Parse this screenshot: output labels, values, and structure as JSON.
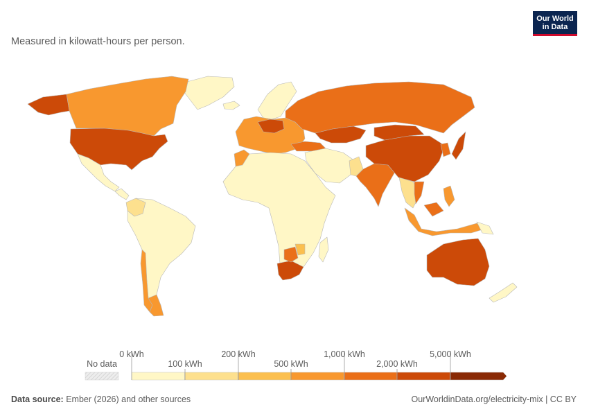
{
  "subtitle": "Measured in kilowatt-hours per person.",
  "logo": {
    "line1": "Our World",
    "line2": "in Data"
  },
  "legend": {
    "no_data_label": "No data",
    "upper_labels": [
      "0 kWh",
      "200 kWh",
      "1,000 kWh",
      "5,000 kWh"
    ],
    "lower_labels": [
      "100 kWh",
      "500 kWh",
      "2,000 kWh"
    ],
    "colors": [
      "#fff7c6",
      "#fde08e",
      "#fbbf4f",
      "#f8982f",
      "#ea6f18",
      "#cc4a08",
      "#8a2a05"
    ],
    "no_data_color": "#e6e6e6"
  },
  "footer": {
    "source_label": "Data source:",
    "source_text": "Ember (2026) and other sources",
    "url_text": "OurWorldinData.org/electricity-mix | CC BY"
  },
  "map_regions": [
    {
      "name": "greenland",
      "color": "#fff7c6"
    },
    {
      "name": "canada",
      "color": "#f8982f"
    },
    {
      "name": "alaska",
      "color": "#cc4a08"
    },
    {
      "name": "united-states",
      "color": "#cc4a08"
    },
    {
      "name": "mexico",
      "color": "#fff7c6"
    },
    {
      "name": "central-america",
      "color": "#fff7c6"
    },
    {
      "name": "colombia",
      "color": "#fde08e"
    },
    {
      "name": "south-america",
      "color": "#fff7c6"
    },
    {
      "name": "chile",
      "color": "#f8982f"
    },
    {
      "name": "argentina-south",
      "color": "#f8982f"
    },
    {
      "name": "iceland",
      "color": "#fff7c6"
    },
    {
      "name": "scandinavia",
      "color": "#fff7c6"
    },
    {
      "name": "europe",
      "color": "#f8982f"
    },
    {
      "name": "central-europe",
      "color": "#cc4a08"
    },
    {
      "name": "russia",
      "color": "#ea6f18"
    },
    {
      "name": "kazakhstan",
      "color": "#cc4a08"
    },
    {
      "name": "turkey",
      "color": "#ea6f18"
    },
    {
      "name": "morocco",
      "color": "#f8982f"
    },
    {
      "name": "africa",
      "color": "#fff7c6"
    },
    {
      "name": "south-africa",
      "color": "#cc4a08"
    },
    {
      "name": "botswana",
      "color": "#ea6f18"
    },
    {
      "name": "zimbabwe",
      "color": "#fbbf4f"
    },
    {
      "name": "madagascar",
      "color": "#fff7c6"
    },
    {
      "name": "middle-east",
      "color": "#fff7c6"
    },
    {
      "name": "pakistan",
      "color": "#fde08e"
    },
    {
      "name": "india",
      "color": "#ea6f18"
    },
    {
      "name": "china",
      "color": "#cc4a08"
    },
    {
      "name": "mongolia",
      "color": "#cc4a08"
    },
    {
      "name": "korea",
      "color": "#ea6f18"
    },
    {
      "name": "japan",
      "color": "#cc4a08"
    },
    {
      "name": "southeast-asia",
      "color": "#fde08e"
    },
    {
      "name": "vietnam",
      "color": "#ea6f18"
    },
    {
      "name": "indonesia",
      "color": "#f8982f"
    },
    {
      "name": "malaysia",
      "color": "#ea6f18"
    },
    {
      "name": "philippines",
      "color": "#f8982f"
    },
    {
      "name": "papua-new-guinea",
      "color": "#fff7c6"
    },
    {
      "name": "australia",
      "color": "#cc4a08"
    },
    {
      "name": "new-zealand",
      "color": "#fff7c6"
    }
  ]
}
